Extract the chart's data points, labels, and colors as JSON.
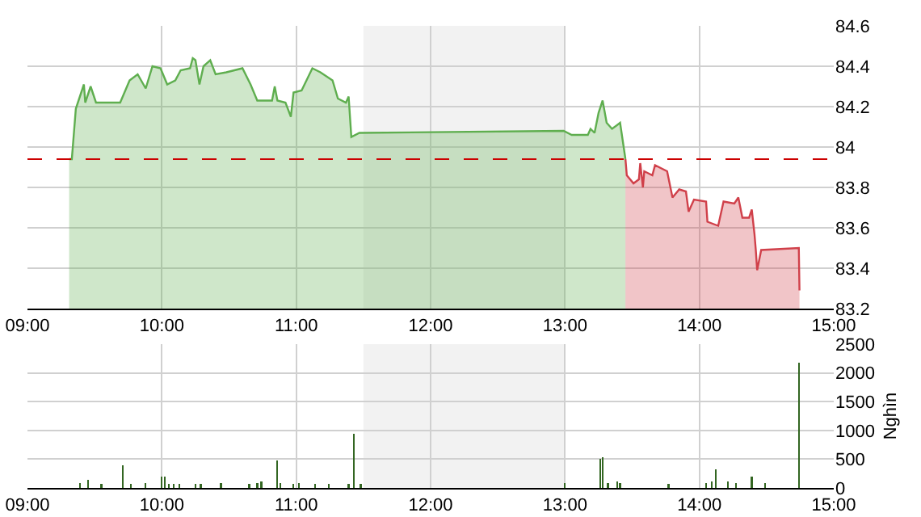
{
  "chart_data": [
    {
      "type": "area",
      "xlim": [
        9,
        15
      ],
      "xticks": [
        {
          "value": 9,
          "label": "09:00"
        },
        {
          "value": 10,
          "label": "10:00"
        },
        {
          "value": 11,
          "label": "11:00"
        },
        {
          "value": 12,
          "label": "12:00"
        },
        {
          "value": 13,
          "label": "13:00"
        },
        {
          "value": 14,
          "label": "14:00"
        },
        {
          "value": 15,
          "label": "15:00"
        }
      ],
      "ylim": [
        83.2,
        84.6
      ],
      "yticks": [
        83.2,
        83.4,
        83.6,
        83.8,
        84,
        84.2,
        84.4,
        84.6
      ],
      "grid": true,
      "ref_lines": [
        {
          "axis": "y",
          "value": 83.94,
          "color": "#cc0000",
          "line_style": "dashed"
        }
      ],
      "bands": [
        {
          "axis": "x",
          "from": 11.5,
          "to": 13,
          "color": "#f2f2f2"
        }
      ],
      "series": [
        {
          "color": "#5fae4f",
          "x": [
            9.31,
            9.33,
            9.36,
            9.42,
            9.43,
            9.47,
            9.51,
            9.6,
            9.69,
            9.76,
            9.82,
            9.88,
            9.93,
            9.99,
            10.04,
            10.1,
            10.14,
            10.21,
            10.23,
            10.25,
            10.28,
            10.31,
            10.36,
            10.4,
            10.48,
            10.6,
            10.66,
            10.71,
            10.82,
            10.84,
            10.86,
            10.92,
            10.96,
            10.98,
            11.04,
            11.12,
            11.18,
            11.27,
            11.31,
            11.37,
            11.39,
            11.41,
            11.47,
            12.99,
            13.05,
            13.17,
            13.19,
            13.22,
            13.25,
            13.28,
            13.31,
            13.35,
            13.41,
            13.45
          ],
          "values": [
            83.94,
            83.94,
            84.19,
            84.31,
            84.22,
            84.3,
            84.22,
            84.22,
            84.22,
            84.33,
            84.36,
            84.29,
            84.4,
            84.39,
            84.31,
            84.33,
            84.38,
            84.39,
            84.44,
            84.43,
            84.31,
            84.4,
            84.43,
            84.36,
            84.37,
            84.39,
            84.31,
            84.23,
            84.23,
            84.3,
            84.23,
            84.22,
            84.15,
            84.27,
            84.28,
            84.39,
            84.37,
            84.33,
            84.24,
            84.22,
            84.25,
            84.05,
            84.07,
            84.08,
            84.06,
            84.06,
            84.09,
            84.07,
            84.17,
            84.23,
            84.12,
            84.09,
            84.12,
            83.94
          ]
        },
        {
          "color": "#d0404a",
          "x": [
            13.45,
            13.46,
            13.51,
            13.55,
            13.56,
            13.58,
            13.59,
            13.65,
            13.67,
            13.76,
            13.8,
            13.85,
            13.9,
            13.92,
            13.96,
            14.05,
            14.06,
            14.14,
            14.18,
            14.26,
            14.29,
            14.32,
            14.37,
            14.39,
            14.41,
            14.42,
            14.43,
            14.46,
            14.74,
            14.745
          ],
          "values": [
            83.94,
            83.86,
            83.82,
            83.84,
            83.92,
            83.8,
            83.88,
            83.86,
            83.91,
            83.88,
            83.75,
            83.79,
            83.78,
            83.68,
            83.74,
            83.73,
            83.63,
            83.61,
            83.73,
            83.72,
            83.75,
            83.65,
            83.65,
            83.69,
            83.57,
            83.49,
            83.39,
            83.49,
            83.5,
            83.29
          ]
        }
      ]
    },
    {
      "type": "bar",
      "ylabel": "Nghìn",
      "color": "#336622",
      "xlim": [
        9,
        15
      ],
      "xticks": [
        {
          "value": 9,
          "label": "09:00"
        },
        {
          "value": 10,
          "label": "10:00"
        },
        {
          "value": 11,
          "label": "11:00"
        },
        {
          "value": 12,
          "label": "12:00"
        },
        {
          "value": 13,
          "label": "13:00"
        },
        {
          "value": 14,
          "label": "14:00"
        },
        {
          "value": 15,
          "label": "15:00"
        }
      ],
      "ylim": [
        0,
        2500
      ],
      "yticks": [
        0,
        500,
        1000,
        1500,
        2000,
        2500
      ],
      "grid": true,
      "bands": [
        {
          "axis": "x",
          "from": 11.5,
          "to": 13,
          "color": "#f2f2f2"
        }
      ],
      "x": [
        9.39,
        9.45,
        9.55,
        9.71,
        9.77,
        9.88,
        10.0,
        10.02,
        10.05,
        10.09,
        10.13,
        10.25,
        10.29,
        10.44,
        10.65,
        10.71,
        10.74,
        10.86,
        10.88,
        10.98,
        11.02,
        11.14,
        11.24,
        11.39,
        11.43,
        11.48,
        13.0,
        13.26,
        13.28,
        13.32,
        13.39,
        13.41,
        13.77,
        14.05,
        14.09,
        14.12,
        14.21,
        14.27,
        14.39,
        14.49,
        14.74
      ],
      "values": [
        80,
        140,
        70,
        390,
        70,
        80,
        200,
        200,
        70,
        70,
        70,
        70,
        70,
        80,
        70,
        80,
        110,
        480,
        80,
        70,
        80,
        70,
        70,
        70,
        940,
        70,
        80,
        510,
        540,
        80,
        110,
        80,
        70,
        80,
        110,
        320,
        110,
        80,
        200,
        80,
        2180
      ]
    }
  ]
}
